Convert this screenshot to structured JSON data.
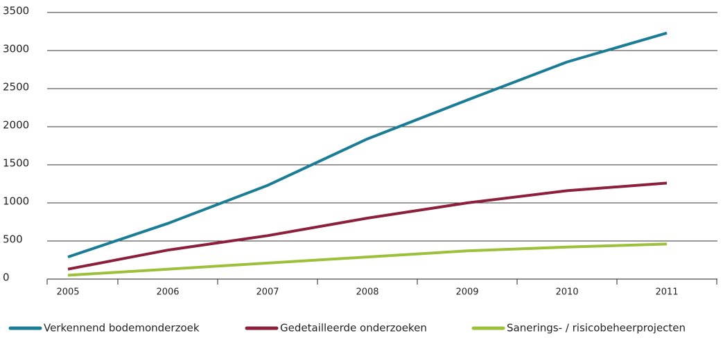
{
  "chart_data": {
    "type": "line",
    "categories": [
      "2005",
      "2006",
      "2007",
      "2008",
      "2009",
      "2010",
      "2011"
    ],
    "series": [
      {
        "name": "Verkennend bodemonderzoek",
        "color": "#1b7c96",
        "values": [
          290,
          730,
          1230,
          1840,
          2350,
          2850,
          3230
        ]
      },
      {
        "name": "Gedetailleerde onderzoeken",
        "color": "#8c1f3b",
        "values": [
          130,
          380,
          570,
          800,
          1000,
          1160,
          1260
        ]
      },
      {
        "name": "Sanerings- / risicobeheerprojecten",
        "color": "#9dc03b",
        "values": [
          50,
          130,
          210,
          290,
          370,
          420,
          460
        ]
      }
    ],
    "ylim": [
      0,
      3500
    ],
    "yticks": [
      0,
      500,
      1000,
      1500,
      2000,
      2500,
      3000,
      3500
    ],
    "grid": true,
    "legend": "bottom"
  }
}
